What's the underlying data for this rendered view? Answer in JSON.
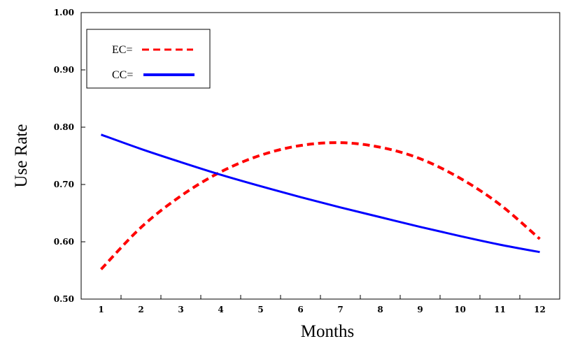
{
  "chart_data": {
    "type": "line",
    "title": "",
    "xlabel": "Months",
    "ylabel": "Use Rate",
    "x": [
      1,
      2,
      3,
      4,
      5,
      6,
      7,
      8,
      9,
      10,
      11,
      12
    ],
    "xlim": [
      0.5,
      12.5
    ],
    "ylim": [
      0.5,
      1.0
    ],
    "x_tick_labels": [
      "1",
      "2",
      "3",
      "4",
      "5",
      "6",
      "7",
      "8",
      "9",
      "10",
      "11",
      "12"
    ],
    "y_ticks": [
      0.5,
      0.6,
      0.7,
      0.8,
      0.9,
      1.0
    ],
    "y_tick_labels": [
      "0.50",
      "0.60",
      "0.70",
      "0.80",
      "0.90",
      "1.00"
    ],
    "grid": false,
    "legend_position": "top-left",
    "series": [
      {
        "name": "EC=",
        "color": "#ff0000",
        "style": "dashed",
        "values": [
          0.552,
          0.625,
          0.68,
          0.722,
          0.751,
          0.768,
          0.773,
          0.765,
          0.745,
          0.711,
          0.665,
          0.605
        ]
      },
      {
        "name": "CC=",
        "color": "#0000ff",
        "style": "solid",
        "values": [
          0.787,
          0.762,
          0.739,
          0.717,
          0.697,
          0.678,
          0.66,
          0.643,
          0.626,
          0.61,
          0.595,
          0.582
        ]
      }
    ]
  }
}
